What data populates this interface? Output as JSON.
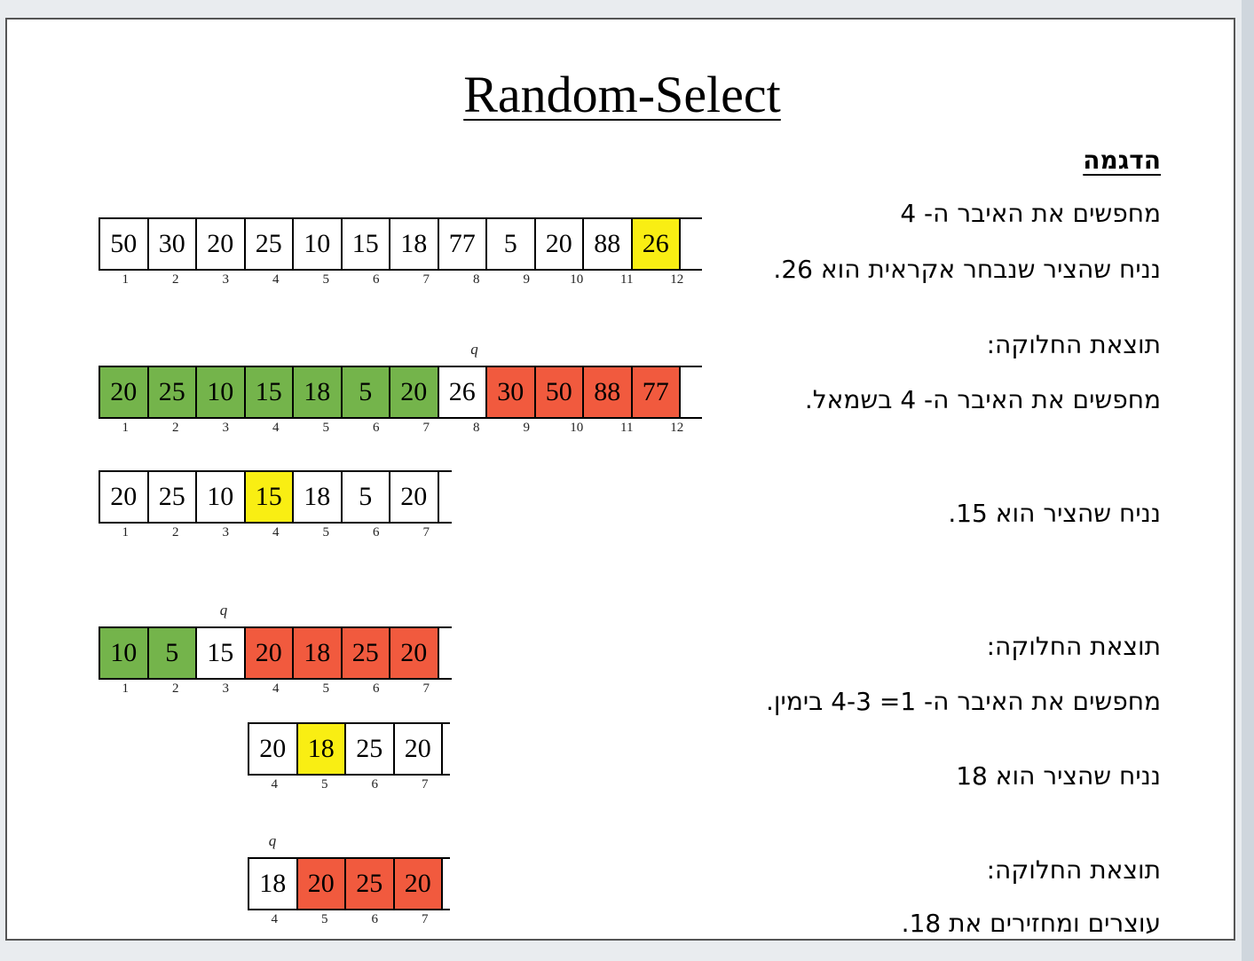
{
  "title": "Random-Select",
  "lines": {
    "heading": "הדגמה",
    "search4": "מחפשים את האיבר ה- 4",
    "pivot26": "נניח שהציר שנבחר אקראית הוא 26.",
    "result1": "תוצאת החלוקה:",
    "left4": "מחפשים את האיבר ה- 4 בשמאל.",
    "pivot15": "נניח שהציר הוא 15.",
    "result2": "תוצאת החלוקה:",
    "right1": "מחפשים את האיבר ה- 1= 4-3 בימין.",
    "pivot18": "נניח שהציר הוא 18",
    "result3": "תוצאת החלוקה:",
    "stop": "עוצרים ומחזירים את 18."
  },
  "q_label": "q",
  "colors": {
    "yellow": "#f9ee13",
    "green": "#74b44b",
    "red": "#f15a3e",
    "white": "#ffffff"
  },
  "arrays": [
    {
      "values": [
        "50",
        "30",
        "20",
        "25",
        "10",
        "15",
        "18",
        "77",
        "5",
        "20",
        "88",
        "26"
      ],
      "colors": [
        "white",
        "white",
        "white",
        "white",
        "white",
        "white",
        "white",
        "white",
        "white",
        "white",
        "white",
        "yellow"
      ],
      "indices": [
        "1",
        "2",
        "3",
        "4",
        "5",
        "6",
        "7",
        "8",
        "9",
        "10",
        "11",
        "12"
      ]
    },
    {
      "values": [
        "20",
        "25",
        "10",
        "15",
        "18",
        "5",
        "20",
        "26",
        "30",
        "50",
        "88",
        "77"
      ],
      "colors": [
        "green",
        "green",
        "green",
        "green",
        "green",
        "green",
        "green",
        "white",
        "red",
        "red",
        "red",
        "red"
      ],
      "indices": [
        "1",
        "2",
        "3",
        "4",
        "5",
        "6",
        "7",
        "8",
        "9",
        "10",
        "11",
        "12"
      ],
      "q_at": 7
    },
    {
      "values": [
        "20",
        "25",
        "10",
        "15",
        "18",
        "5",
        "20"
      ],
      "colors": [
        "white",
        "white",
        "white",
        "yellow",
        "white",
        "white",
        "white"
      ],
      "indices": [
        "1",
        "2",
        "3",
        "4",
        "5",
        "6",
        "7"
      ]
    },
    {
      "values": [
        "10",
        "5",
        "15",
        "20",
        "18",
        "25",
        "20"
      ],
      "colors": [
        "green",
        "green",
        "white",
        "red",
        "red",
        "red",
        "red"
      ],
      "indices": [
        "1",
        "2",
        "3",
        "4",
        "5",
        "6",
        "7"
      ],
      "q_at": 2
    },
    {
      "values": [
        "20",
        "18",
        "25",
        "20"
      ],
      "colors": [
        "white",
        "yellow",
        "white",
        "white"
      ],
      "indices": [
        "4",
        "5",
        "6",
        "7"
      ]
    },
    {
      "values": [
        "18",
        "20",
        "25",
        "20"
      ],
      "colors": [
        "white",
        "red",
        "red",
        "red"
      ],
      "indices": [
        "4",
        "5",
        "6",
        "7"
      ],
      "q_at": 0
    }
  ]
}
